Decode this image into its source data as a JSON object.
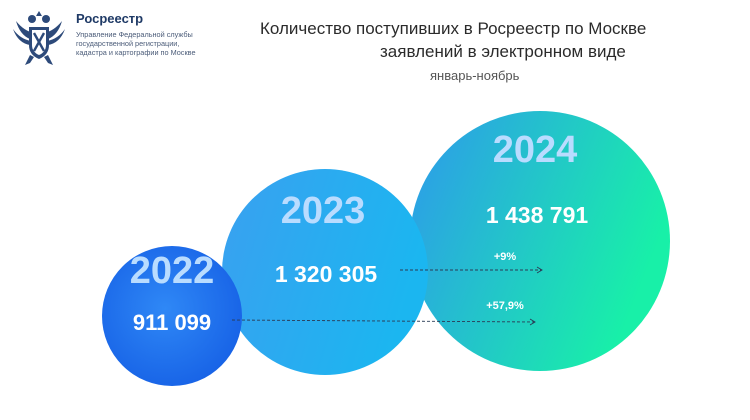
{
  "header": {
    "org_name": "Росреестр",
    "org_desc": [
      "Управление Федеральной службы",
      "государственной регистрации,",
      "кадастра и картографии по Москве"
    ],
    "logo_icon": "double-headed-eagle-emblem"
  },
  "chart_data": {
    "type": "bubble",
    "title_line1": "Количество поступивших в Росреестр по Москве",
    "title_line2": "заявлений в электронном виде",
    "subtitle": "январь-ноябрь",
    "categories": [
      "2022",
      "2023",
      "2024"
    ],
    "values": [
      911099,
      1320305,
      1438791
    ],
    "value_labels": [
      "911 099",
      "1 320 305",
      "1 438 791"
    ],
    "growth": [
      {
        "from": "2023",
        "to": "2024",
        "label": "+9%"
      },
      {
        "from": "2022",
        "to": "2024",
        "label": "+57,9%"
      }
    ],
    "colors": {
      "c2022": "#1e6ef2",
      "c2023": "#2aa7ee",
      "c2024_start": "#2e98ec",
      "c2024_end": "#18f0a8",
      "year_label": "#b9dcff"
    }
  }
}
